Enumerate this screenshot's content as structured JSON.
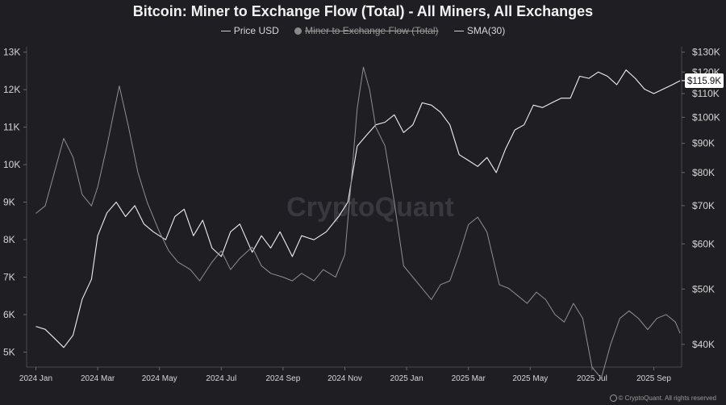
{
  "chart_data": {
    "type": "line",
    "title": "Bitcoin: Miner to Exchange Flow (Total) - All Miners, All Exchanges",
    "watermark": "CryptoQuant",
    "footer": "© CryptoQuant. All rights reserved",
    "legend": [
      {
        "name": "Price USD",
        "visible": true
      },
      {
        "name": "Miner to Exchange Flow (Total)",
        "visible": false
      },
      {
        "name": "SMA(30)",
        "visible": true
      }
    ],
    "x_labels": [
      "2024 Jan",
      "2024 Mar",
      "2024 May",
      "2024 Jul",
      "2024 Sep",
      "2024 Nov",
      "2025 Jan",
      "2025 Mar",
      "2025 May",
      "2025 Jul",
      "2025 Sep"
    ],
    "x_label_month_index": [
      0,
      2,
      4,
      6,
      8,
      10,
      12,
      14,
      16,
      18,
      20
    ],
    "x_range_months": [
      -0.3,
      20.9
    ],
    "left_axis": {
      "ticks": [
        "5K",
        "6K",
        "7K",
        "8K",
        "9K",
        "10K",
        "11K",
        "12K",
        "13K"
      ],
      "values": [
        5000,
        6000,
        7000,
        8000,
        9000,
        10000,
        11000,
        12000,
        13000
      ],
      "range": [
        4600,
        13100
      ]
    },
    "right_axis": {
      "ticks": [
        "$40K",
        "$50K",
        "$60K",
        "$70K",
        "$80K",
        "$90K",
        "$100K",
        "$110K",
        "$120K",
        "$130K"
      ],
      "values": [
        40000,
        50000,
        60000,
        70000,
        80000,
        90000,
        100000,
        110000,
        120000,
        130000
      ],
      "range": [
        36500,
        132000
      ],
      "scale": "log"
    },
    "current_price_label": "$115.9K",
    "current_price_value": 115900,
    "series": [
      {
        "name": "Price USD",
        "axis": "right",
        "x": [
          0,
          0.3,
          0.6,
          0.9,
          1.2,
          1.5,
          1.8,
          2.0,
          2.3,
          2.6,
          2.9,
          3.2,
          3.5,
          3.8,
          4.2,
          4.5,
          4.8,
          5.1,
          5.4,
          5.7,
          6.0,
          6.3,
          6.6,
          7.0,
          7.3,
          7.6,
          7.9,
          8.3,
          8.6,
          9.0,
          9.4,
          9.8,
          10.1,
          10.4,
          10.7,
          11.0,
          11.3,
          11.6,
          11.9,
          12.2,
          12.5,
          12.8,
          13.1,
          13.4,
          13.7,
          14.0,
          14.3,
          14.6,
          14.9,
          15.2,
          15.5,
          15.8,
          16.1,
          16.4,
          16.7,
          17.0,
          17.3,
          17.6,
          17.9,
          18.2,
          18.5,
          18.8,
          19.1,
          19.4,
          19.7,
          20.0,
          20.3,
          20.6,
          20.85
        ],
        "values": [
          43000,
          42500,
          41000,
          39500,
          41500,
          48000,
          52000,
          62000,
          68000,
          71000,
          67000,
          70000,
          65000,
          63000,
          61000,
          67000,
          69000,
          62000,
          66000,
          59000,
          57000,
          63000,
          65000,
          58000,
          62000,
          59000,
          63000,
          57000,
          62000,
          61000,
          63000,
          67000,
          71000,
          89000,
          93000,
          97000,
          98000,
          101000,
          94000,
          97000,
          106000,
          105000,
          102000,
          97000,
          86000,
          84000,
          82000,
          85000,
          80000,
          88000,
          95000,
          97000,
          105000,
          104000,
          106000,
          108000,
          108000,
          118000,
          117000,
          120000,
          118000,
          114000,
          121000,
          117000,
          112000,
          110000,
          112000,
          114000,
          115900
        ]
      },
      {
        "name": "SMA(30)",
        "axis": "left",
        "x": [
          0,
          0.3,
          0.6,
          0.9,
          1.2,
          1.5,
          1.8,
          2.0,
          2.3,
          2.5,
          2.7,
          3.0,
          3.3,
          3.6,
          4.0,
          4.3,
          4.6,
          5.0,
          5.3,
          5.7,
          6.0,
          6.3,
          6.6,
          7.0,
          7.3,
          7.6,
          8.0,
          8.3,
          8.6,
          9.0,
          9.3,
          9.7,
          10.0,
          10.2,
          10.4,
          10.6,
          10.8,
          11.0,
          11.3,
          11.6,
          11.9,
          12.2,
          12.5,
          12.8,
          13.1,
          13.4,
          13.7,
          14.0,
          14.3,
          14.6,
          15.0,
          15.3,
          15.6,
          15.9,
          16.2,
          16.5,
          16.8,
          17.1,
          17.4,
          17.7,
          18.0,
          18.3,
          18.6,
          18.9,
          19.2,
          19.5,
          19.8,
          20.1,
          20.4,
          20.7,
          20.85
        ],
        "values": [
          8700,
          8900,
          9800,
          10700,
          10200,
          9200,
          8900,
          9400,
          10500,
          11300,
          12100,
          11000,
          9800,
          9000,
          8200,
          7700,
          7400,
          7200,
          6900,
          7400,
          7700,
          7200,
          7500,
          7800,
          7300,
          7100,
          7000,
          6900,
          7100,
          6900,
          7200,
          7000,
          7600,
          9500,
          11500,
          12600,
          12000,
          11000,
          10500,
          9000,
          7300,
          7000,
          6700,
          6400,
          6800,
          6900,
          7600,
          8400,
          8600,
          8200,
          6800,
          6700,
          6500,
          6300,
          6600,
          6400,
          6000,
          5800,
          6300,
          5900,
          4600,
          4300,
          5200,
          5900,
          6100,
          5900,
          5600,
          5900,
          6000,
          5800,
          5500
        ]
      }
    ]
  }
}
